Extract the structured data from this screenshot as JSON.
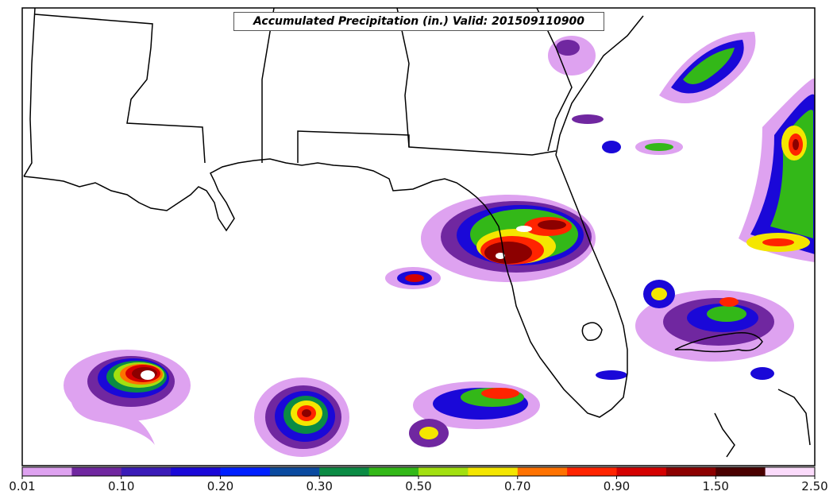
{
  "map": {
    "title": "Accumulated Precipitation (in.) Valid: 201509110900",
    "variable": "Accumulated Precipitation",
    "units": "in.",
    "valid_time": "201509110900",
    "region": "Gulf of Mexico / Florida / Southeastern US"
  },
  "colorbar": {
    "colors": [
      "#dea2f0",
      "#7027a0",
      "#3b1cb8",
      "#1a08d8",
      "#0020ff",
      "#0a4aa0",
      "#0b8b44",
      "#33b818",
      "#a2e010",
      "#f4e600",
      "#ff7200",
      "#ff2400",
      "#d40000",
      "#8c0000",
      "#4a0000",
      "#fbdbfb"
    ],
    "tick_labels": [
      "0.01",
      "0.10",
      "0.20",
      "0.30",
      "0.50",
      "0.70",
      "0.90",
      "1.50",
      "2.50"
    ]
  }
}
